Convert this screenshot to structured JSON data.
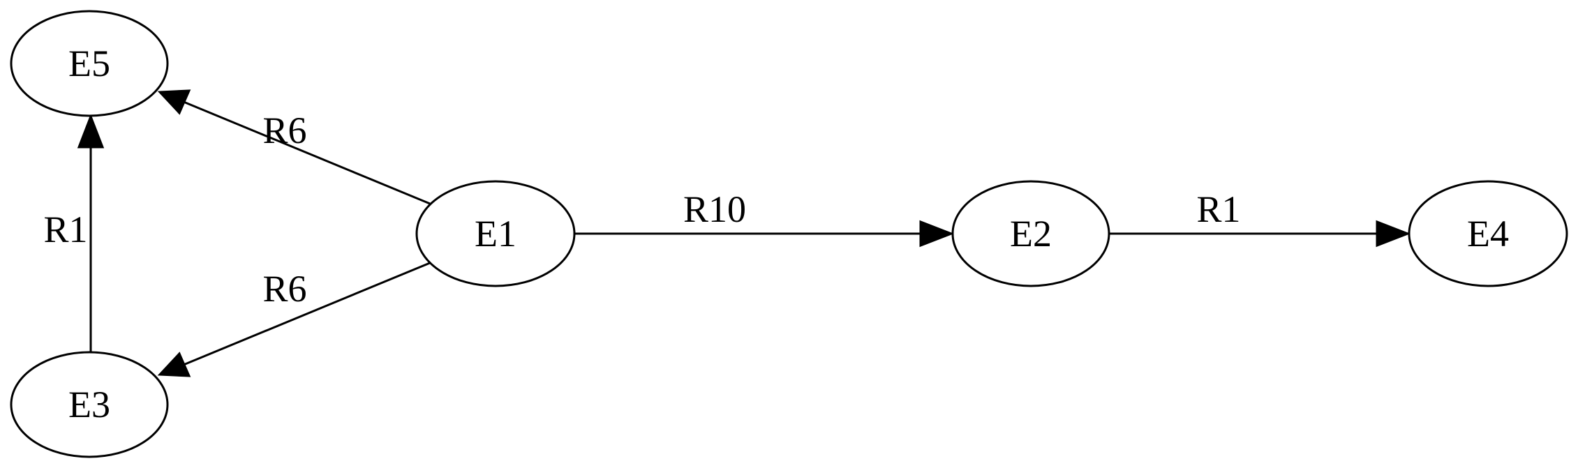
{
  "graph": {
    "nodes": [
      {
        "id": "E5",
        "label": "E5"
      },
      {
        "id": "E1",
        "label": "E1"
      },
      {
        "id": "E2",
        "label": "E2"
      },
      {
        "id": "E4",
        "label": "E4"
      },
      {
        "id": "E3",
        "label": "E3"
      }
    ],
    "edges": [
      {
        "from": "E1",
        "to": "E5",
        "label": "R6"
      },
      {
        "from": "E1",
        "to": "E3",
        "label": "R6"
      },
      {
        "from": "E1",
        "to": "E2",
        "label": "R10"
      },
      {
        "from": "E2",
        "to": "E4",
        "label": "R1"
      },
      {
        "from": "E3",
        "to": "E5",
        "label": "R1"
      }
    ]
  },
  "colors": {
    "stroke": "#000000",
    "background": "#ffffff"
  }
}
